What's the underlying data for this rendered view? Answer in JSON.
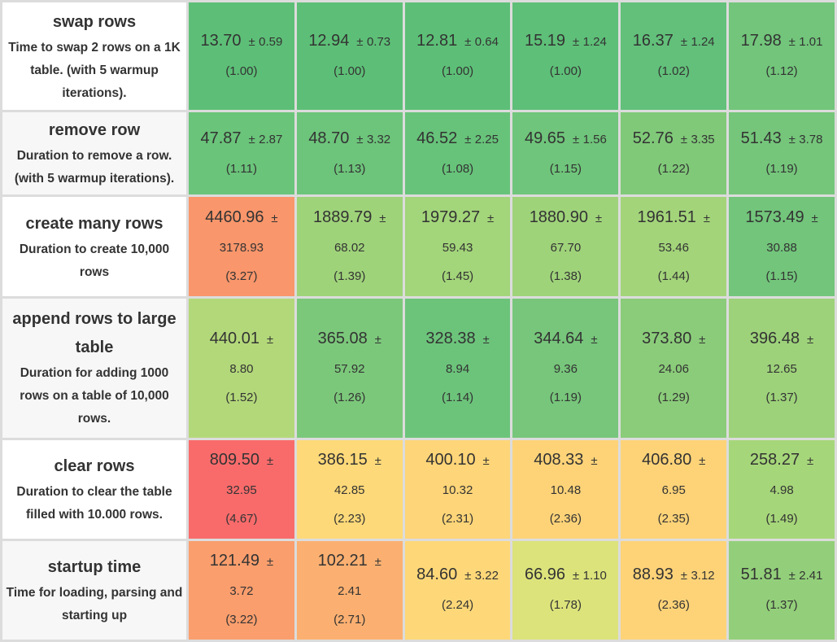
{
  "rows": [
    {
      "title": "swap rows",
      "desc": "Time to swap 2 rows on a 1K table. (with 5 warmup iterations).",
      "cells": [
        {
          "mean": "13.70",
          "dev": "0.59",
          "factor": "(1.00)",
          "color": "#5dbf77"
        },
        {
          "mean": "12.94",
          "dev": "0.73",
          "factor": "(1.00)",
          "color": "#5dbf77"
        },
        {
          "mean": "12.81",
          "dev": "0.64",
          "factor": "(1.00)",
          "color": "#5dbf77"
        },
        {
          "mean": "15.19",
          "dev": "1.24",
          "factor": "(1.00)",
          "color": "#5ebf78"
        },
        {
          "mean": "16.37",
          "dev": "1.24",
          "factor": "(1.02)",
          "color": "#62c07a"
        },
        {
          "mean": "17.98",
          "dev": "1.01",
          "factor": "(1.12)",
          "color": "#72c57b"
        }
      ]
    },
    {
      "title": "remove row",
      "desc": "Duration to remove a row. (with 5 warmup iterations).",
      "cells": [
        {
          "mean": "47.87",
          "dev": "2.87",
          "factor": "(1.11)",
          "color": "#6ac47a"
        },
        {
          "mean": "48.70",
          "dev": "3.32",
          "factor": "(1.13)",
          "color": "#6dc47b"
        },
        {
          "mean": "46.52",
          "dev": "2.25",
          "factor": "(1.08)",
          "color": "#67c37a"
        },
        {
          "mean": "49.65",
          "dev": "1.56",
          "factor": "(1.15)",
          "color": "#6fc57b"
        },
        {
          "mean": "52.76",
          "dev": "3.35",
          "factor": "(1.22)",
          "color": "#80c979"
        },
        {
          "mean": "51.43",
          "dev": "3.78",
          "factor": "(1.19)",
          "color": "#75c67b"
        }
      ]
    },
    {
      "title": "create many rows",
      "desc": "Duration to create 10,000 rows",
      "cells": [
        {
          "mean": "4460.96",
          "dev": "3178.93",
          "factor": "(3.27)",
          "color": "#f9966b"
        },
        {
          "mean": "1889.79",
          "dev": "68.02",
          "factor": "(1.39)",
          "color": "#9fd37a"
        },
        {
          "mean": "1979.27",
          "dev": "59.43",
          "factor": "(1.45)",
          "color": "#a3d57a"
        },
        {
          "mean": "1880.90",
          "dev": "67.70",
          "factor": "(1.38)",
          "color": "#9fd37a"
        },
        {
          "mean": "1961.51",
          "dev": "53.46",
          "factor": "(1.44)",
          "color": "#a3d47a"
        },
        {
          "mean": "1573.49",
          "dev": "30.88",
          "factor": "(1.15)",
          "color": "#72c57b"
        }
      ]
    },
    {
      "title": "append rows to large table",
      "desc": "Duration for adding 1000 rows on a table of 10,000 rows.",
      "cells": [
        {
          "mean": "440.01",
          "dev": "8.80",
          "factor": "(1.52)",
          "color": "#b3d87a"
        },
        {
          "mean": "365.08",
          "dev": "57.92",
          "factor": "(1.26)",
          "color": "#7cc87b"
        },
        {
          "mean": "328.38",
          "dev": "8.94",
          "factor": "(1.14)",
          "color": "#6cc47b"
        },
        {
          "mean": "344.64",
          "dev": "9.36",
          "factor": "(1.19)",
          "color": "#77c67b"
        },
        {
          "mean": "373.80",
          "dev": "24.06",
          "factor": "(1.29)",
          "color": "#8bcc7a"
        },
        {
          "mean": "396.48",
          "dev": "12.65",
          "factor": "(1.37)",
          "color": "#9dd27a"
        }
      ]
    },
    {
      "title": "clear rows",
      "desc": "Duration to clear the table filled with 10.000 rows.",
      "cells": [
        {
          "mean": "809.50",
          "dev": "32.95",
          "factor": "(4.67)",
          "color": "#f96b6b"
        },
        {
          "mean": "386.15",
          "dev": "42.85",
          "factor": "(2.23)",
          "color": "#fed979"
        },
        {
          "mean": "400.10",
          "dev": "10.32",
          "factor": "(2.31)",
          "color": "#fed578"
        },
        {
          "mean": "408.33",
          "dev": "10.48",
          "factor": "(2.36)",
          "color": "#fed378"
        },
        {
          "mean": "406.80",
          "dev": "6.95",
          "factor": "(2.35)",
          "color": "#fed378"
        },
        {
          "mean": "258.27",
          "dev": "4.98",
          "factor": "(1.49)",
          "color": "#a6d67a"
        }
      ]
    },
    {
      "title": "startup time",
      "desc": "Time for loading, parsing and starting up",
      "cells": [
        {
          "mean": "121.49",
          "dev": "3.72",
          "factor": "(3.22)",
          "color": "#fa9e6d"
        },
        {
          "mean": "102.21",
          "dev": "2.41",
          "factor": "(2.71)",
          "color": "#fbb071"
        },
        {
          "mean": "84.60",
          "dev": "3.22",
          "factor": "(2.24)",
          "color": "#fed878"
        },
        {
          "mean": "66.96",
          "dev": "1.10",
          "factor": "(1.78)",
          "color": "#dce37b"
        },
        {
          "mean": "88.93",
          "dev": "3.12",
          "factor": "(2.36)",
          "color": "#fed378"
        },
        {
          "mean": "51.81",
          "dev": "2.41",
          "factor": "(1.37)",
          "color": "#93cf7a"
        }
      ]
    }
  ],
  "pm_symbol": "±"
}
